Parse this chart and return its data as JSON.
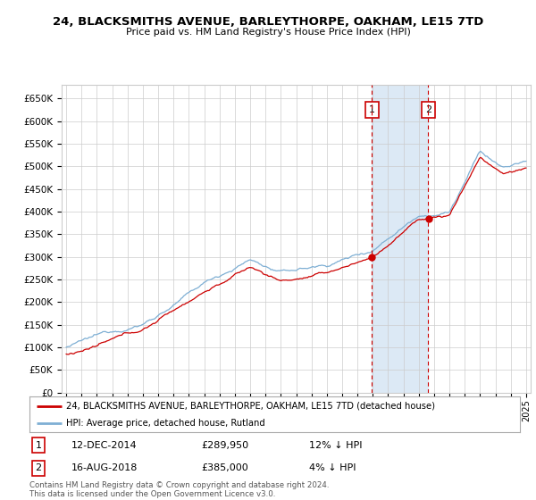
{
  "title": "24, BLACKSMITHS AVENUE, BARLEYTHORPE, OAKHAM, LE15 7TD",
  "subtitle": "Price paid vs. HM Land Registry's House Price Index (HPI)",
  "ylabel_ticks": [
    "£0",
    "£50K",
    "£100K",
    "£150K",
    "£200K",
    "£250K",
    "£300K",
    "£350K",
    "£400K",
    "£450K",
    "£500K",
    "£550K",
    "£600K",
    "£650K"
  ],
  "ytick_values": [
    0,
    50000,
    100000,
    150000,
    200000,
    250000,
    300000,
    350000,
    400000,
    450000,
    500000,
    550000,
    600000,
    650000
  ],
  "ylim": [
    0,
    680000
  ],
  "xlim_start": 1994.7,
  "xlim_end": 2025.3,
  "purchase1_date": 2014.95,
  "purchase1_price": 289950,
  "purchase1_label": "1",
  "purchase2_date": 2018.62,
  "purchase2_price": 385000,
  "purchase2_label": "2",
  "hpi_color": "#7eafd4",
  "price_color": "#cc0000",
  "shade_color": "#dce9f5",
  "legend_line1": "24, BLACKSMITHS AVENUE, BARLEYTHORPE, OAKHAM, LE15 7TD (detached house)",
  "legend_line2": "HPI: Average price, detached house, Rutland",
  "footer": "Contains HM Land Registry data © Crown copyright and database right 2024.\nThis data is licensed under the Open Government Licence v3.0.",
  "background_color": "#ffffff",
  "grid_color": "#cccccc",
  "ann_row1_date": "12-DEC-2014",
  "ann_row1_price": "£289,950",
  "ann_row1_hpi": "12% ↓ HPI",
  "ann_row2_date": "16-AUG-2018",
  "ann_row2_price": "£385,000",
  "ann_row2_hpi": "4% ↓ HPI"
}
